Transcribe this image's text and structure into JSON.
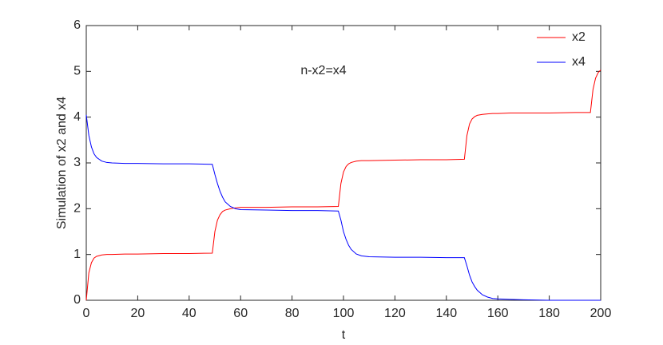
{
  "chart_data": {
    "type": "line",
    "annotation": "n-x2=x4",
    "xlabel": "t",
    "ylabel": "Simulation of x2 and x4",
    "x": [
      0,
      1,
      2,
      3,
      4,
      6,
      8,
      10,
      15,
      20,
      30,
      40,
      49,
      50,
      51,
      52,
      53,
      54,
      56,
      58,
      60,
      70,
      80,
      90,
      98,
      99,
      100,
      101,
      102,
      103,
      105,
      107,
      110,
      120,
      130,
      140,
      147,
      148,
      149,
      150,
      151,
      152,
      154,
      156,
      158,
      160,
      165,
      170,
      180,
      190,
      196,
      197,
      198,
      199,
      200
    ],
    "series": [
      {
        "name": "x2",
        "color": "#ff0000",
        "values": [
          0,
          0.6,
          0.82,
          0.92,
          0.96,
          0.99,
          1.0,
          1.0,
          1.01,
          1.01,
          1.02,
          1.02,
          1.03,
          1.5,
          1.75,
          1.87,
          1.94,
          1.97,
          2.0,
          2.02,
          2.03,
          2.03,
          2.04,
          2.04,
          2.05,
          2.55,
          2.8,
          2.92,
          2.98,
          3.01,
          3.04,
          3.05,
          3.05,
          3.06,
          3.07,
          3.07,
          3.08,
          3.6,
          3.85,
          3.96,
          4.01,
          4.04,
          4.06,
          4.07,
          4.08,
          4.08,
          4.09,
          4.09,
          4.09,
          4.1,
          4.1,
          4.6,
          4.85,
          4.97,
          5.03
        ]
      },
      {
        "name": "x4",
        "color": "#0000ff",
        "values": [
          4.05,
          3.6,
          3.35,
          3.2,
          3.12,
          3.04,
          3.01,
          3.0,
          2.99,
          2.99,
          2.98,
          2.98,
          2.97,
          2.75,
          2.55,
          2.38,
          2.25,
          2.15,
          2.05,
          2.0,
          1.98,
          1.97,
          1.96,
          1.96,
          1.95,
          1.75,
          1.5,
          1.33,
          1.2,
          1.11,
          1.01,
          0.97,
          0.95,
          0.94,
          0.94,
          0.93,
          0.93,
          0.75,
          0.55,
          0.4,
          0.3,
          0.22,
          0.12,
          0.07,
          0.04,
          0.03,
          0.02,
          0.01,
          0,
          0,
          0,
          0,
          0,
          0,
          0
        ]
      }
    ],
    "xlim": [
      0,
      200
    ],
    "xticks": [
      0,
      20,
      40,
      60,
      80,
      100,
      120,
      140,
      160,
      180,
      200
    ],
    "ylim": [
      0,
      6
    ],
    "yticks": [
      0,
      1,
      2,
      3,
      4,
      5,
      6
    ],
    "legend": "top-right",
    "grid": false
  }
}
